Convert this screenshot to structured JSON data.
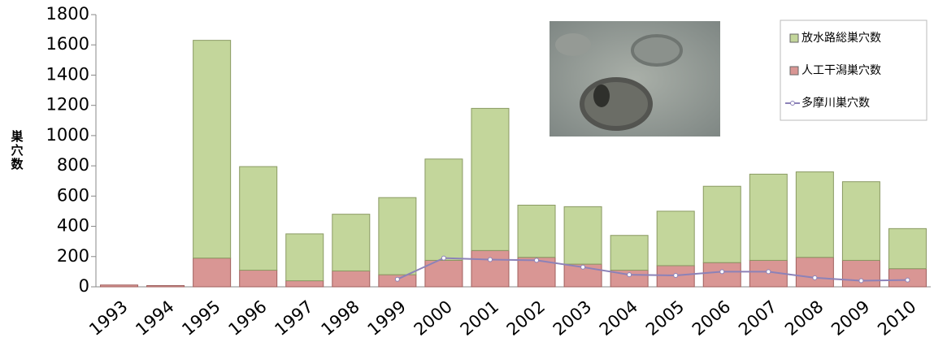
{
  "chart_data": {
    "type": "bar",
    "stacked": true,
    "y_label": "巣穴数",
    "categories": [
      "1993",
      "1994",
      "1995",
      "1996",
      "1997",
      "1998",
      "1999",
      "2000",
      "2001",
      "2002",
      "2003",
      "2004",
      "2005",
      "2006",
      "2007",
      "2008",
      "2009",
      "2010"
    ],
    "series": [
      {
        "name": "人工干潟巣穴数",
        "color": "#d99694",
        "type": "bar",
        "values": [
          12,
          8,
          190,
          110,
          40,
          105,
          80,
          175,
          240,
          195,
          150,
          110,
          140,
          160,
          175,
          195,
          175,
          120
        ]
      },
      {
        "name": "放水路総巣穴数",
        "color": "#c3d69b",
        "type": "bar",
        "values": [
          0,
          0,
          1440,
          685,
          310,
          375,
          510,
          670,
          940,
          345,
          380,
          230,
          360,
          505,
          570,
          565,
          520,
          265
        ]
      },
      {
        "name": "多摩川巣穴数",
        "color": "#8c82b8",
        "type": "line",
        "values": [
          null,
          null,
          null,
          null,
          null,
          null,
          50,
          190,
          180,
          175,
          130,
          80,
          75,
          100,
          100,
          60,
          40,
          45
        ]
      }
    ],
    "legend_order": [
      1,
      0,
      2
    ],
    "ylim": [
      0,
      1800
    ],
    "yticks": [
      0,
      200,
      400,
      600,
      800,
      1000,
      1200,
      1400,
      1600,
      1800
    ],
    "grid": false,
    "legend": "upper right"
  }
}
